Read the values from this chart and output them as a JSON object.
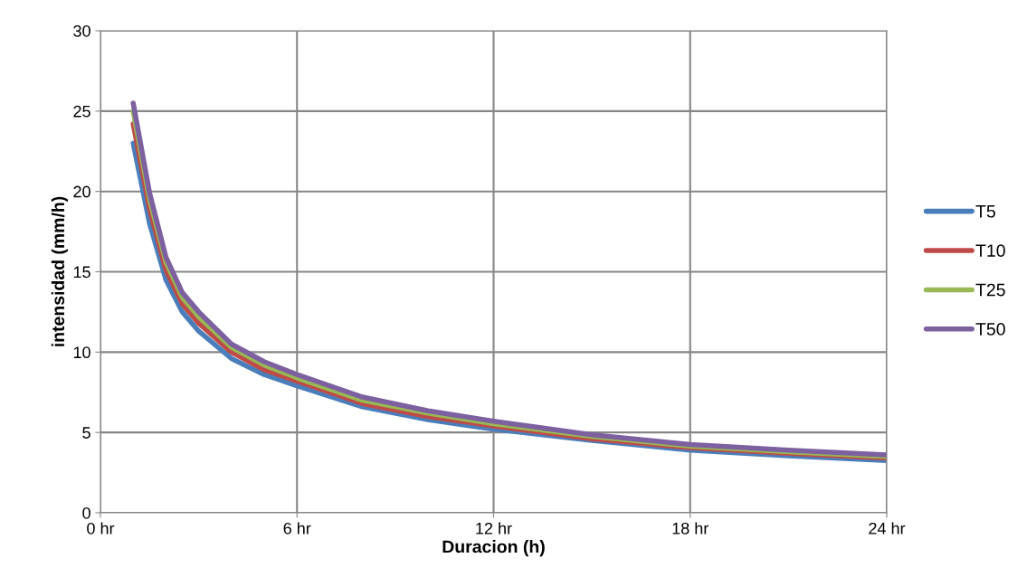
{
  "chart_data": {
    "type": "line",
    "xlabel": "Duracion (h)",
    "ylabel": "intensidad (mm/h)",
    "x": [
      1,
      1.5,
      2,
      2.5,
      3,
      4,
      5,
      6,
      8,
      10,
      12,
      15,
      18,
      21,
      24
    ],
    "series": [
      {
        "name": "T5",
        "color": "#4a7ebb",
        "values": [
          23.0,
          18.0,
          14.5,
          12.5,
          11.3,
          9.6,
          8.6,
          7.9,
          6.6,
          5.8,
          5.2,
          4.5,
          3.9,
          3.55,
          3.25
        ]
      },
      {
        "name": "T10",
        "color": "#be4b48",
        "values": [
          24.2,
          18.9,
          15.1,
          13.0,
          11.8,
          10.0,
          8.9,
          8.2,
          6.8,
          6.0,
          5.4,
          4.6,
          4.05,
          3.7,
          3.4
        ]
      },
      {
        "name": "T25",
        "color": "#98b954",
        "values": [
          25.0,
          19.5,
          15.6,
          13.4,
          12.2,
          10.3,
          9.2,
          8.4,
          7.0,
          6.2,
          5.55,
          4.75,
          4.15,
          3.8,
          3.5
        ]
      },
      {
        "name": "T50",
        "color": "#7d60a0",
        "values": [
          25.5,
          19.9,
          15.9,
          13.7,
          12.5,
          10.5,
          9.4,
          8.6,
          7.2,
          6.35,
          5.7,
          4.85,
          4.25,
          3.9,
          3.6
        ]
      }
    ],
    "xlim": [
      0,
      24
    ],
    "xticks": [
      {
        "value": 0,
        "label": "0 hr"
      },
      {
        "value": 6,
        "label": "6 hr"
      },
      {
        "value": 12,
        "label": "12 hr"
      },
      {
        "value": 18,
        "label": "18 hr"
      },
      {
        "value": 24,
        "label": "24 hr"
      }
    ],
    "ylim": [
      0,
      30
    ],
    "yticks": [
      0,
      5,
      10,
      15,
      20,
      25,
      30
    ],
    "grid": true,
    "legend": "right",
    "marker": "none",
    "line_style": "solid"
  }
}
